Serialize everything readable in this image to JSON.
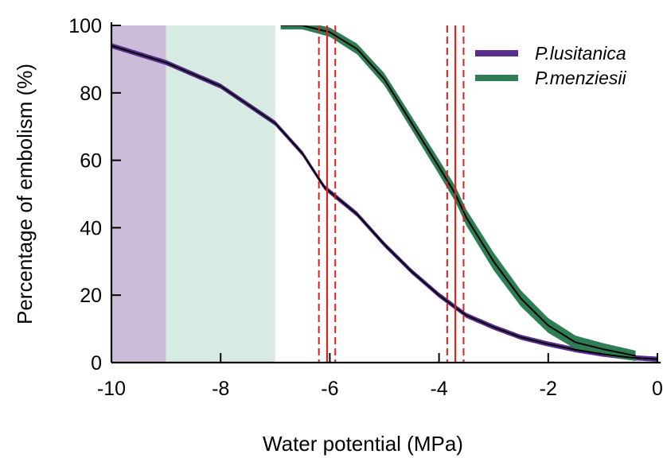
{
  "chart_data": {
    "type": "line",
    "xlabel": "Water potential  (MPa)",
    "ylabel": "Percentage of embolism (%)",
    "xlim": [
      -10,
      0
    ],
    "ylim": [
      0,
      100
    ],
    "x_ticks": [
      -10,
      -8,
      -6,
      -4,
      -2,
      0
    ],
    "x_tick_labels": [
      "-10",
      "-8",
      "-6",
      "-4",
      "-2",
      "0"
    ],
    "y_ticks": [
      0,
      20,
      40,
      60,
      80,
      100
    ],
    "y_tick_labels": [
      "0",
      "20",
      "40",
      "60",
      "80",
      "100"
    ],
    "legend_position": "top-right",
    "shaded_regions": [
      {
        "x_range": [
          -10,
          -9
        ],
        "color": "#cbbdd9"
      },
      {
        "x_range": [
          -9,
          -7
        ],
        "color": "#d7ebe2"
      }
    ],
    "series": [
      {
        "name": "P.lusitanica",
        "color": "#4b2680",
        "band_color": "#5a2d91",
        "x_range": [
          -10,
          0
        ],
        "x": [
          -10,
          -9,
          -8,
          -7,
          -6.5,
          -6.1,
          -5.5,
          -5,
          -4.5,
          -4,
          -3.5,
          -3,
          -2.5,
          -2,
          -1.5,
          -1,
          -0.5,
          0
        ],
        "y": [
          94,
          89,
          82,
          71,
          62,
          52,
          44,
          35,
          27,
          20,
          14,
          10.5,
          7.5,
          5.5,
          3.8,
          2.5,
          1.5,
          1
        ],
        "p50": -6.05,
        "p50_ci": [
          -6.2,
          -5.9
        ]
      },
      {
        "name": "P.menziesii",
        "color": "#2b7a52",
        "band_color": "#2e7d55",
        "x_range": [
          -6.9,
          -0.4
        ],
        "x": [
          -6.9,
          -6.5,
          -6,
          -5.5,
          -5,
          -4.5,
          -4,
          -3.7,
          -3.5,
          -3,
          -2.5,
          -2,
          -1.5,
          -1,
          -0.4
        ],
        "y": [
          100,
          100,
          98,
          93,
          84,
          71,
          58,
          50,
          43,
          30,
          19,
          11,
          6,
          4,
          2
        ],
        "p50": -3.7,
        "p50_ci": [
          -3.85,
          -3.55
        ]
      }
    ]
  }
}
